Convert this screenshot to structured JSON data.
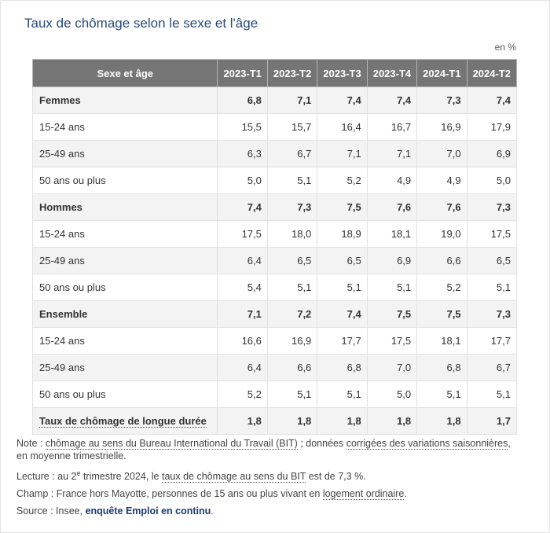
{
  "title": "Taux de chômage selon le sexe et l'âge",
  "unit": "en %",
  "table": {
    "header": [
      "Sexe et âge",
      "2023-T1",
      "2023-T2",
      "2023-T3",
      "2023-T4",
      "2024-T1",
      "2024-T2"
    ],
    "rows": [
      {
        "label": "Femmes",
        "values": [
          "6,8",
          "7,1",
          "7,4",
          "7,4",
          "7,3",
          "7,4"
        ]
      },
      {
        "label": "15-24 ans",
        "values": [
          "15,5",
          "15,7",
          "16,4",
          "16,7",
          "16,9",
          "17,9"
        ]
      },
      {
        "label": "25-49 ans",
        "values": [
          "6,3",
          "6,7",
          "7,1",
          "7,1",
          "7,0",
          "6,9"
        ]
      },
      {
        "label": "50 ans ou plus",
        "values": [
          "5,0",
          "5,1",
          "5,2",
          "4,9",
          "4,9",
          "5,0"
        ]
      },
      {
        "label": "Hommes",
        "values": [
          "7,4",
          "7,3",
          "7,5",
          "7,6",
          "7,6",
          "7,3"
        ]
      },
      {
        "label": "15-24 ans",
        "values": [
          "17,5",
          "18,0",
          "18,9",
          "18,1",
          "19,0",
          "17,5"
        ]
      },
      {
        "label": "25-49 ans",
        "values": [
          "6,4",
          "6,5",
          "6,5",
          "6,9",
          "6,6",
          "6,5"
        ]
      },
      {
        "label": "50 ans ou plus",
        "values": [
          "5,4",
          "5,1",
          "5,1",
          "5,1",
          "5,2",
          "5,1"
        ]
      },
      {
        "label": "Ensemble",
        "values": [
          "7,1",
          "7,2",
          "7,4",
          "7,5",
          "7,5",
          "7,3"
        ]
      },
      {
        "label": "15-24 ans",
        "values": [
          "16,6",
          "16,9",
          "17,7",
          "17,5",
          "18,1",
          "17,7"
        ]
      },
      {
        "label": "25-49 ans",
        "values": [
          "6,4",
          "6,6",
          "6,8",
          "7,0",
          "6,8",
          "6,7"
        ]
      },
      {
        "label": "50 ans ou plus",
        "values": [
          "5,2",
          "5,1",
          "5,1",
          "5,0",
          "5,1",
          "5,1"
        ]
      },
      {
        "label": "Taux de chômage de longue durée",
        "values": [
          "1,8",
          "1,8",
          "1,8",
          "1,8",
          "1,8",
          "1,7"
        ]
      }
    ]
  },
  "notes": {
    "note_prefix": "Note : ",
    "note_link1": "chômage au sens du Bureau International du Travail (BIT)",
    "note_mid": " ; données ",
    "note_link2": "corrigées des variations saisonnières",
    "note_suffix": ", en moyenne trimestrielle.",
    "lecture_prefix": "Lecture : au 2",
    "lecture_sup": "e",
    "lecture_mid": " trimestre 2024, le ",
    "lecture_link": "taux de chômage au sens du BIT",
    "lecture_suffix": " est de 7,3 %.",
    "champ_prefix": "Champ : France hors Mayotte, personnes de 15 ans ou plus vivant en ",
    "champ_link": "logement ordinaire",
    "champ_suffix": ".",
    "source_prefix": "Source : Insee, ",
    "source_link": "enquête Emploi en continu",
    "source_suffix": "."
  }
}
